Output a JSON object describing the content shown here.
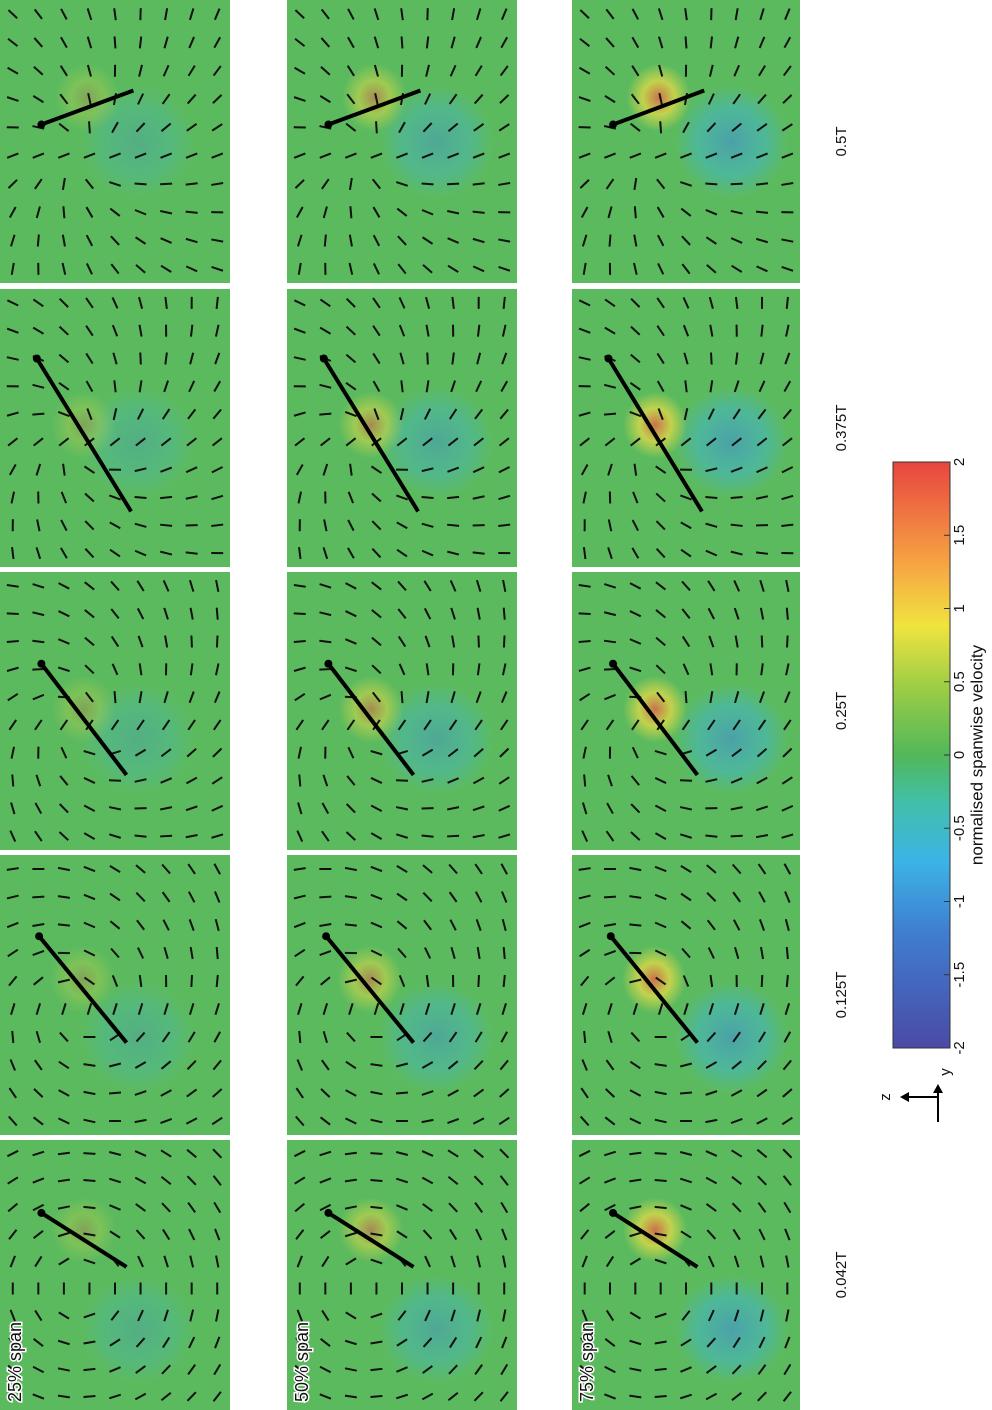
{
  "figure": {
    "spans": [
      "25% span",
      "50% span",
      "75% span"
    ],
    "times": [
      "0.042T",
      "0.125T",
      "0.25T",
      "0.375T",
      "0.5T"
    ],
    "colorbar": {
      "label": "normalised spanwise velocity",
      "lim": [
        -2,
        2
      ],
      "ticks": [
        -2,
        -1.5,
        -1,
        -0.5,
        0,
        0.5,
        1,
        1.5,
        2
      ]
    },
    "axes_indicator": {
      "vertical": "z",
      "horizontal": "y"
    }
  }
}
